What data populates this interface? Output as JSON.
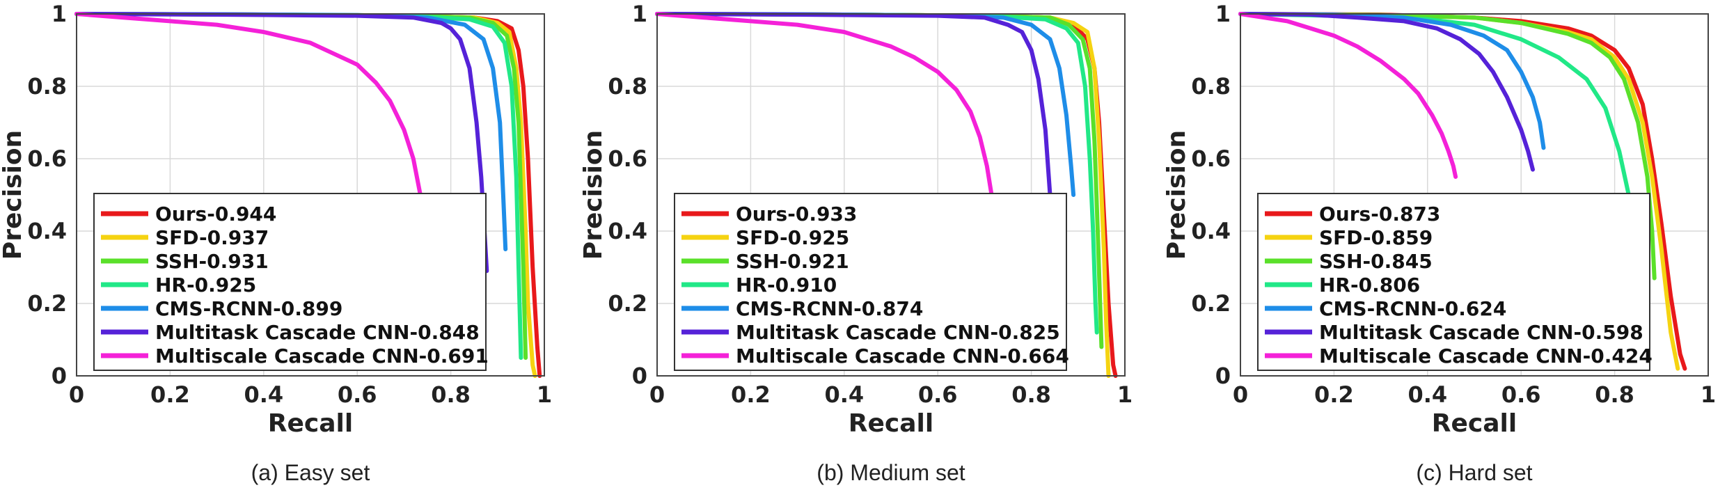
{
  "chart_data": [
    {
      "type": "line",
      "caption": "(a) Easy set",
      "xlabel": "Recall",
      "ylabel": "Precision",
      "xlim": [
        0,
        1
      ],
      "ylim": [
        0,
        1
      ],
      "xticks": [
        "0",
        "0.2",
        "0.4",
        "0.6",
        "0.8",
        "1"
      ],
      "yticks": [
        "0",
        "0.2",
        "0.4",
        "0.6",
        "0.8",
        "1"
      ],
      "grid": true,
      "legend_position": "bottom-left",
      "series": [
        {
          "name": "Ours-0.944",
          "color": "#e8191b",
          "x": [
            0,
            0.4,
            0.7,
            0.85,
            0.9,
            0.93,
            0.945,
            0.955,
            0.965,
            0.975,
            0.985,
            0.99
          ],
          "y": [
            1,
            0.998,
            0.995,
            0.99,
            0.98,
            0.96,
            0.9,
            0.8,
            0.6,
            0.3,
            0.08,
            0
          ]
        },
        {
          "name": "SFD-0.937",
          "color": "#f5d311",
          "x": [
            0,
            0.4,
            0.7,
            0.85,
            0.9,
            0.925,
            0.94,
            0.95,
            0.96,
            0.965,
            0.975,
            0.98
          ],
          "y": [
            1,
            0.998,
            0.995,
            0.99,
            0.975,
            0.95,
            0.85,
            0.7,
            0.4,
            0.2,
            0.03,
            0
          ]
        },
        {
          "name": "SSH-0.931",
          "color": "#5ae02a",
          "x": [
            0,
            0.4,
            0.7,
            0.84,
            0.89,
            0.92,
            0.935,
            0.945,
            0.95,
            0.955,
            0.96
          ],
          "y": [
            1,
            0.998,
            0.995,
            0.99,
            0.975,
            0.94,
            0.85,
            0.7,
            0.5,
            0.3,
            0.05
          ]
        },
        {
          "name": "HR-0.925",
          "color": "#21e887",
          "x": [
            0,
            0.4,
            0.7,
            0.84,
            0.89,
            0.915,
            0.93,
            0.94,
            0.945,
            0.95
          ],
          "y": [
            1,
            0.998,
            0.995,
            0.985,
            0.965,
            0.92,
            0.8,
            0.55,
            0.3,
            0.05
          ]
        },
        {
          "name": "CMS-RCNN-0.899",
          "color": "#1e8de8",
          "x": [
            0,
            0.3,
            0.6,
            0.75,
            0.83,
            0.87,
            0.89,
            0.905,
            0.912,
            0.917
          ],
          "y": [
            1,
            0.999,
            0.997,
            0.99,
            0.97,
            0.93,
            0.85,
            0.7,
            0.5,
            0.35
          ]
        },
        {
          "name": "Multitask Cascade CNN-0.848",
          "color": "#5522d8",
          "x": [
            0,
            0.3,
            0.6,
            0.72,
            0.78,
            0.8,
            0.82,
            0.84,
            0.855,
            0.865,
            0.872,
            0.877
          ],
          "y": [
            1,
            0.998,
            0.995,
            0.99,
            0.975,
            0.96,
            0.93,
            0.85,
            0.7,
            0.55,
            0.4,
            0.29
          ]
        },
        {
          "name": "Multiscale Cascade CNN-0.691",
          "color": "#f421d8",
          "x": [
            0,
            0.1,
            0.2,
            0.3,
            0.4,
            0.5,
            0.55,
            0.6,
            0.64,
            0.67,
            0.7,
            0.72,
            0.735,
            0.745
          ],
          "y": [
            1,
            0.99,
            0.98,
            0.97,
            0.95,
            0.92,
            0.89,
            0.86,
            0.81,
            0.76,
            0.68,
            0.6,
            0.5,
            0.4
          ]
        }
      ]
    },
    {
      "type": "line",
      "caption": "(b) Medium set",
      "xlabel": "Recall",
      "ylabel": "Precision",
      "xlim": [
        0,
        1
      ],
      "ylim": [
        0,
        1
      ],
      "xticks": [
        "0",
        "0.2",
        "0.4",
        "0.6",
        "0.8",
        "1"
      ],
      "yticks": [
        "0",
        "0.2",
        "0.4",
        "0.6",
        "0.8",
        "1"
      ],
      "grid": true,
      "legend_position": "bottom-left",
      "series": [
        {
          "name": "Ours-0.933",
          "color": "#e8191b",
          "x": [
            0,
            0.4,
            0.7,
            0.84,
            0.89,
            0.92,
            0.935,
            0.945,
            0.955,
            0.965,
            0.975,
            0.98
          ],
          "y": [
            1,
            0.998,
            0.995,
            0.99,
            0.97,
            0.93,
            0.85,
            0.7,
            0.45,
            0.2,
            0.03,
            0
          ]
        },
        {
          "name": "SFD-0.925",
          "color": "#f5d311",
          "x": [
            0,
            0.4,
            0.7,
            0.84,
            0.89,
            0.92,
            0.935,
            0.945,
            0.955,
            0.96,
            0.965
          ],
          "y": [
            1,
            0.998,
            0.995,
            0.99,
            0.975,
            0.95,
            0.85,
            0.65,
            0.35,
            0.15,
            0
          ]
        },
        {
          "name": "SSH-0.921",
          "color": "#5ae02a",
          "x": [
            0,
            0.4,
            0.7,
            0.84,
            0.88,
            0.91,
            0.925,
            0.935,
            0.942,
            0.947,
            0.95
          ],
          "y": [
            1,
            0.998,
            0.995,
            0.99,
            0.97,
            0.93,
            0.85,
            0.65,
            0.4,
            0.2,
            0.08
          ]
        },
        {
          "name": "HR-0.910",
          "color": "#21e887",
          "x": [
            0,
            0.4,
            0.7,
            0.83,
            0.875,
            0.9,
            0.915,
            0.925,
            0.932,
            0.937,
            0.94
          ],
          "y": [
            1,
            0.998,
            0.995,
            0.985,
            0.96,
            0.92,
            0.8,
            0.6,
            0.4,
            0.2,
            0.12
          ]
        },
        {
          "name": "CMS-RCNN-0.874",
          "color": "#1e8de8",
          "x": [
            0,
            0.3,
            0.6,
            0.74,
            0.8,
            0.84,
            0.86,
            0.875,
            0.885,
            0.89
          ],
          "y": [
            1,
            0.999,
            0.996,
            0.99,
            0.97,
            0.93,
            0.85,
            0.72,
            0.58,
            0.5
          ]
        },
        {
          "name": "Multitask Cascade CNN-0.825",
          "color": "#5522d8",
          "x": [
            0,
            0.3,
            0.6,
            0.7,
            0.75,
            0.78,
            0.8,
            0.815,
            0.83,
            0.84,
            0.845
          ],
          "y": [
            1,
            0.998,
            0.995,
            0.99,
            0.97,
            0.95,
            0.9,
            0.82,
            0.68,
            0.5,
            0.4
          ]
        },
        {
          "name": "Multiscale Cascade CNN-0.664",
          "color": "#f421d8",
          "x": [
            0,
            0.1,
            0.2,
            0.3,
            0.4,
            0.5,
            0.55,
            0.6,
            0.64,
            0.67,
            0.69,
            0.705,
            0.715
          ],
          "y": [
            1,
            0.99,
            0.98,
            0.97,
            0.95,
            0.91,
            0.88,
            0.84,
            0.79,
            0.73,
            0.66,
            0.58,
            0.5
          ]
        }
      ]
    },
    {
      "type": "line",
      "caption": "(c) Hard set",
      "xlabel": "Recall",
      "ylabel": "Precision",
      "xlim": [
        0,
        1
      ],
      "ylim": [
        0,
        1
      ],
      "xticks": [
        "0",
        "0.2",
        "0.4",
        "0.6",
        "0.8",
        "1"
      ],
      "yticks": [
        "0",
        "0.2",
        "0.4",
        "0.6",
        "0.8",
        "1"
      ],
      "grid": true,
      "legend_position": "bottom-left",
      "series": [
        {
          "name": "Ours-0.873",
          "color": "#e8191b",
          "x": [
            0,
            0.3,
            0.5,
            0.6,
            0.7,
            0.75,
            0.8,
            0.83,
            0.86,
            0.88,
            0.9,
            0.92,
            0.94,
            0.95
          ],
          "y": [
            1,
            0.998,
            0.99,
            0.98,
            0.96,
            0.94,
            0.9,
            0.85,
            0.75,
            0.6,
            0.42,
            0.22,
            0.06,
            0.02
          ]
        },
        {
          "name": "SFD-0.859",
          "color": "#f5d311",
          "x": [
            0,
            0.3,
            0.5,
            0.6,
            0.7,
            0.75,
            0.8,
            0.83,
            0.86,
            0.88,
            0.9,
            0.92,
            0.935
          ],
          "y": [
            1,
            0.997,
            0.99,
            0.975,
            0.95,
            0.93,
            0.88,
            0.82,
            0.7,
            0.55,
            0.35,
            0.12,
            0.02
          ]
        },
        {
          "name": "SSH-0.845",
          "color": "#5ae02a",
          "x": [
            0,
            0.3,
            0.5,
            0.6,
            0.7,
            0.75,
            0.79,
            0.82,
            0.85,
            0.87,
            0.88,
            0.885
          ],
          "y": [
            1,
            0.997,
            0.99,
            0.975,
            0.945,
            0.92,
            0.88,
            0.82,
            0.7,
            0.55,
            0.4,
            0.27
          ]
        },
        {
          "name": "HR-0.806",
          "color": "#21e887",
          "x": [
            0,
            0.2,
            0.4,
            0.5,
            0.6,
            0.68,
            0.74,
            0.78,
            0.81,
            0.83,
            0.84
          ],
          "y": [
            1,
            0.995,
            0.985,
            0.97,
            0.93,
            0.88,
            0.82,
            0.74,
            0.62,
            0.5,
            0.4
          ]
        },
        {
          "name": "CMS-RCNN-0.624",
          "color": "#1e8de8",
          "x": [
            0,
            0.2,
            0.35,
            0.45,
            0.52,
            0.57,
            0.6,
            0.625,
            0.64,
            0.648
          ],
          "y": [
            1,
            0.998,
            0.99,
            0.97,
            0.94,
            0.9,
            0.84,
            0.77,
            0.7,
            0.63
          ]
        },
        {
          "name": "Multitask Cascade CNN-0.598",
          "color": "#5522d8",
          "x": [
            0,
            0.15,
            0.25,
            0.35,
            0.42,
            0.47,
            0.51,
            0.54,
            0.57,
            0.6,
            0.615,
            0.625
          ],
          "y": [
            1,
            0.998,
            0.99,
            0.98,
            0.96,
            0.93,
            0.89,
            0.84,
            0.77,
            0.68,
            0.62,
            0.57
          ]
        },
        {
          "name": "Multiscale Cascade CNN-0.424",
          "color": "#f421d8",
          "x": [
            0,
            0.05,
            0.1,
            0.15,
            0.2,
            0.25,
            0.3,
            0.35,
            0.38,
            0.41,
            0.43,
            0.445,
            0.455,
            0.46
          ],
          "y": [
            1,
            0.99,
            0.98,
            0.96,
            0.94,
            0.91,
            0.87,
            0.82,
            0.78,
            0.72,
            0.67,
            0.62,
            0.58,
            0.55
          ]
        }
      ]
    }
  ]
}
